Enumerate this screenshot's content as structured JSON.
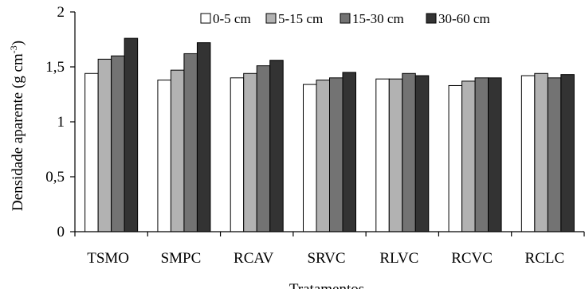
{
  "chart_data": {
    "type": "bar",
    "ylabel_prefix": "Densidade aparente (g cm",
    "ylabel_sup": "-3",
    "ylabel_suffix": ")",
    "xlabel": "Tratamentos",
    "ylim": [
      0,
      2
    ],
    "yticks": [
      {
        "value": 0,
        "label": "0"
      },
      {
        "value": 0.5,
        "label": "0,5"
      },
      {
        "value": 1,
        "label": "1"
      },
      {
        "value": 1.5,
        "label": "1,5"
      },
      {
        "value": 2,
        "label": "2"
      }
    ],
    "categories": [
      "TSMO",
      "SMPC",
      "RCAV",
      "SRVC",
      "RLVC",
      "RCVC",
      "RCLC"
    ],
    "legend_position": "top-right",
    "grid": false,
    "series": [
      {
        "name": "0-5 cm",
        "color": "#ffffff",
        "values": [
          1.44,
          1.38,
          1.4,
          1.34,
          1.39,
          1.33,
          1.42
        ]
      },
      {
        "name": "5-15 cm",
        "color": "#b2b2b2",
        "values": [
          1.57,
          1.47,
          1.44,
          1.38,
          1.39,
          1.37,
          1.44
        ]
      },
      {
        "name": "15-30 cm",
        "color": "#737373",
        "values": [
          1.6,
          1.62,
          1.51,
          1.4,
          1.44,
          1.4,
          1.4
        ]
      },
      {
        "name": "30-60 cm",
        "color": "#333333",
        "values": [
          1.76,
          1.72,
          1.56,
          1.45,
          1.42,
          1.4,
          1.43
        ]
      }
    ]
  }
}
